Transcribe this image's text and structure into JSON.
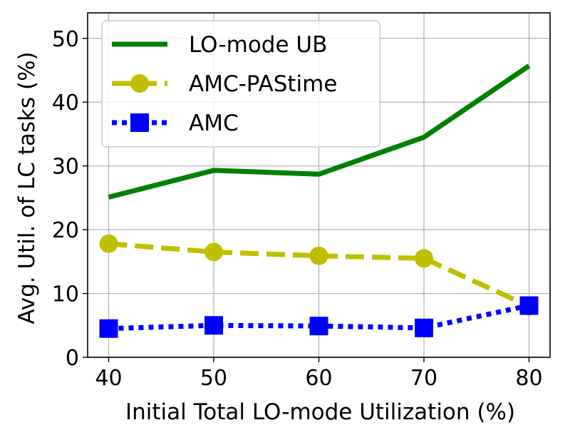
{
  "chart_data": {
    "type": "line",
    "xlabel": "Initial Total LO-mode Utilization (%)",
    "ylabel": "Avg. Util. of LC tasks (%)",
    "x": [
      40,
      50,
      60,
      70,
      80
    ],
    "xlim": [
      38,
      82
    ],
    "ylim": [
      0,
      54
    ],
    "xticks": [
      40,
      50,
      60,
      70,
      80
    ],
    "yticks": [
      0,
      10,
      20,
      30,
      40,
      50
    ],
    "grid": true,
    "legend_position": "top-left",
    "series": [
      {
        "name": "LO-mode UB",
        "values": [
          25.1,
          29.3,
          28.7,
          34.5,
          45.7
        ],
        "color": "#008000",
        "style": "solid",
        "marker": "none"
      },
      {
        "name": "AMC-PAStime",
        "values": [
          17.8,
          16.5,
          15.9,
          15.5,
          8.0
        ],
        "color": "#bfbf00",
        "style": "dashed",
        "marker": "circle"
      },
      {
        "name": "AMC",
        "values": [
          4.5,
          5.0,
          4.9,
          4.6,
          8.1
        ],
        "color": "#0000ff",
        "style": "dotted",
        "marker": "square"
      }
    ]
  }
}
